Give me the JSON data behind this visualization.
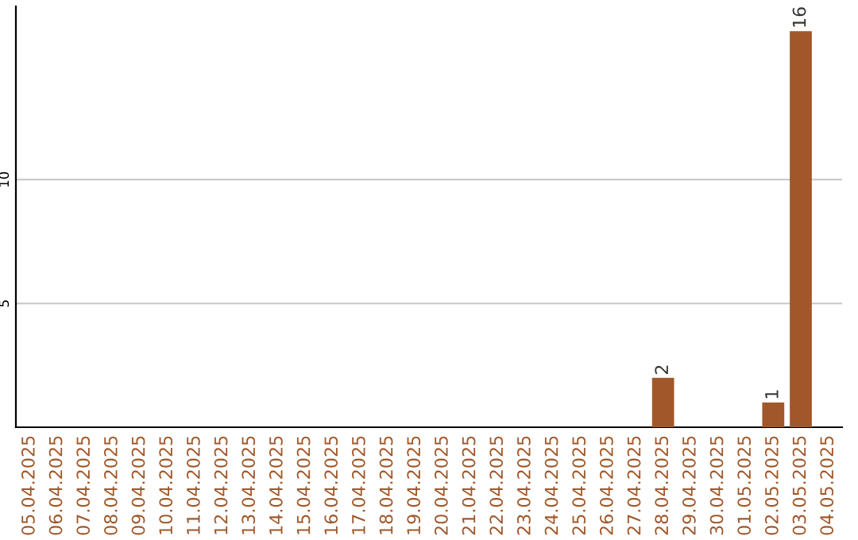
{
  "chart_data": {
    "type": "bar",
    "categories": [
      "05.04.2025",
      "06.04.2025",
      "07.04.2025",
      "08.04.2025",
      "09.04.2025",
      "10.04.2025",
      "11.04.2025",
      "12.04.2025",
      "13.04.2025",
      "14.04.2025",
      "15.04.2025",
      "16.04.2025",
      "17.04.2025",
      "18.04.2025",
      "19.04.2025",
      "20.04.2025",
      "21.04.2025",
      "22.04.2025",
      "23.04.2025",
      "24.04.2025",
      "25.04.2025",
      "26.04.2025",
      "27.04.2025",
      "28.04.2025",
      "29.04.2025",
      "30.04.2025",
      "01.05.2025",
      "02.05.2025",
      "03.05.2025",
      "04.05.2025"
    ],
    "values": [
      0,
      0,
      0,
      0,
      0,
      0,
      0,
      0,
      0,
      0,
      0,
      0,
      0,
      0,
      0,
      0,
      0,
      0,
      0,
      0,
      0,
      0,
      0,
      2,
      0,
      0,
      0,
      1,
      16,
      0
    ],
    "value_labels": [
      null,
      null,
      null,
      null,
      null,
      null,
      null,
      null,
      null,
      null,
      null,
      null,
      null,
      null,
      null,
      null,
      null,
      null,
      null,
      null,
      null,
      null,
      null,
      "2",
      null,
      null,
      null,
      "1",
      "16",
      null
    ],
    "color": "#a0582a",
    "ylim": [
      0,
      17
    ],
    "yticks": [
      5,
      10
    ],
    "grid": "y"
  }
}
